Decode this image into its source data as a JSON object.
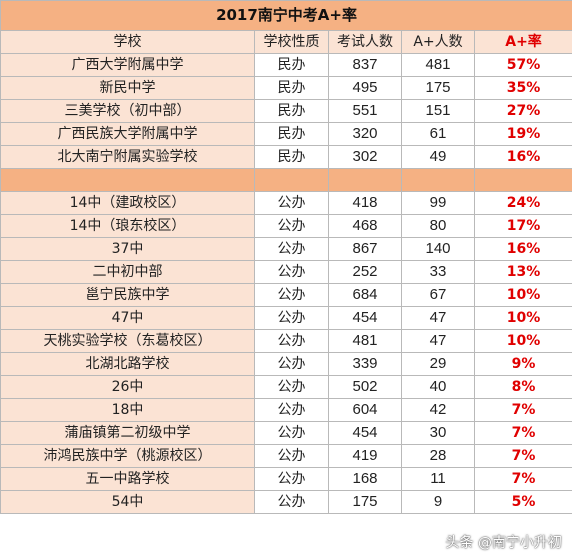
{
  "title": "2017南宁中考A+率",
  "headers": [
    "学校",
    "学校性质",
    "考试人数",
    "A+人数",
    "A+率"
  ],
  "private_rows": [
    [
      "广西大学附属中学",
      "民办",
      "837",
      "481",
      "57%"
    ],
    [
      "新民中学",
      "民办",
      "495",
      "175",
      "35%"
    ],
    [
      "三美学校（初中部）",
      "民办",
      "551",
      "151",
      "27%"
    ],
    [
      "广西民族大学附属中学",
      "民办",
      "320",
      "61",
      "19%"
    ],
    [
      "北大南宁附属实验学校",
      "民办",
      "302",
      "49",
      "16%"
    ]
  ],
  "public_rows": [
    [
      "14中（建政校区）",
      "公办",
      "418",
      "99",
      "24%"
    ],
    [
      "14中（琅东校区）",
      "公办",
      "468",
      "80",
      "17%"
    ],
    [
      "37中",
      "公办",
      "867",
      "140",
      "16%"
    ],
    [
      "二中初中部",
      "公办",
      "252",
      "33",
      "13%"
    ],
    [
      "邕宁民族中学",
      "公办",
      "684",
      "67",
      "10%"
    ],
    [
      "47中",
      "公办",
      "454",
      "47",
      "10%"
    ],
    [
      "天桃实验学校（东葛校区）",
      "公办",
      "481",
      "47",
      "10%"
    ],
    [
      "北湖北路学校",
      "公办",
      "339",
      "29",
      "9%"
    ],
    [
      "26中",
      "公办",
      "502",
      "40",
      "8%"
    ],
    [
      "18中",
      "公办",
      "604",
      "42",
      "7%"
    ],
    [
      "蒲庙镇第二初级中学",
      "公办",
      "454",
      "30",
      "7%"
    ],
    [
      "沛鸿民族中学（桃源校区）",
      "公办",
      "419",
      "28",
      "7%"
    ],
    [
      "五一中路学校",
      "公办",
      "168",
      "11",
      "7%"
    ],
    [
      "54中",
      "公办",
      "175",
      "9",
      "5%"
    ]
  ],
  "watermark": "头条 @南宁小升初",
  "colors": {
    "title_bg": "#f5b183",
    "name_bg": "#fbe3d4",
    "rate_text": "#e00000"
  }
}
